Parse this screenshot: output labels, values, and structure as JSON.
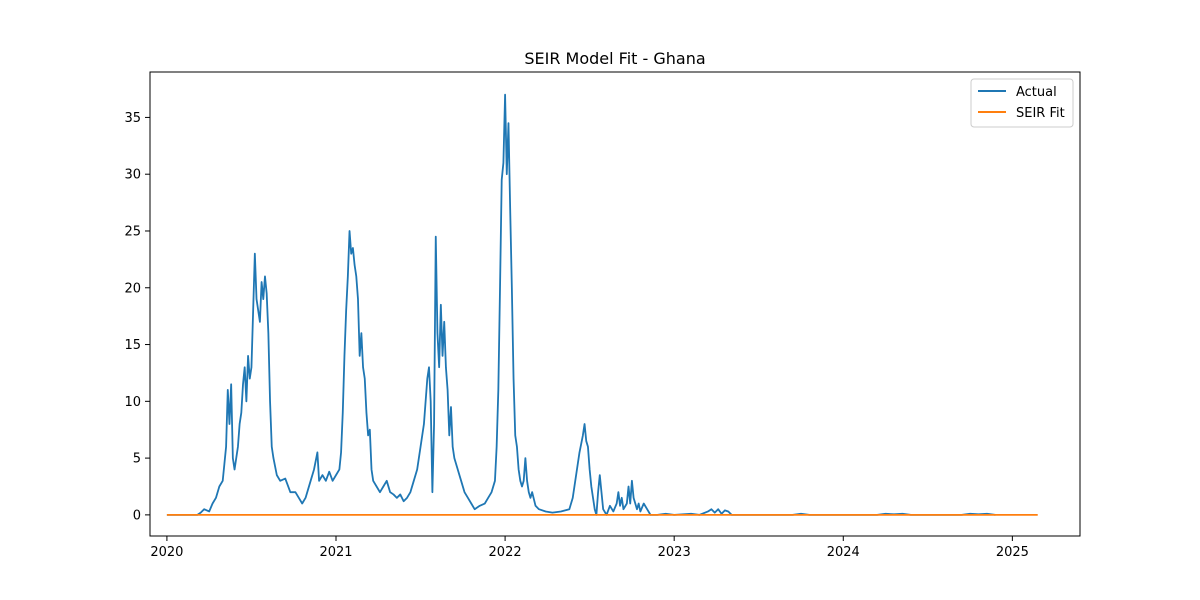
{
  "chart_data": {
    "type": "line",
    "title": "SEIR Model Fit - Ghana",
    "xlabel": "",
    "ylabel": "",
    "xlim": [
      2019.9,
      2025.4
    ],
    "ylim": [
      -1.86,
      39.0
    ],
    "x_ticks": [
      {
        "value": 2020,
        "label": "2020"
      },
      {
        "value": 2021,
        "label": "2021"
      },
      {
        "value": 2022,
        "label": "2022"
      },
      {
        "value": 2023,
        "label": "2023"
      },
      {
        "value": 2024,
        "label": "2024"
      },
      {
        "value": 2025,
        "label": "2025"
      }
    ],
    "y_ticks": [
      {
        "value": 0,
        "label": "0"
      },
      {
        "value": 5,
        "label": "5"
      },
      {
        "value": 10,
        "label": "10"
      },
      {
        "value": 15,
        "label": "15"
      },
      {
        "value": 20,
        "label": "20"
      },
      {
        "value": 25,
        "label": "25"
      },
      {
        "value": 30,
        "label": "30"
      },
      {
        "value": 35,
        "label": "35"
      }
    ],
    "grid": false,
    "legend_position": "top-right",
    "series": [
      {
        "name": "Actual",
        "color": "#1f77b4",
        "points": [
          [
            2020.0,
            0.0
          ],
          [
            2020.18,
            0.0
          ],
          [
            2020.2,
            0.2
          ],
          [
            2020.22,
            0.5
          ],
          [
            2020.25,
            0.3
          ],
          [
            2020.27,
            1.0
          ],
          [
            2020.29,
            1.5
          ],
          [
            2020.31,
            2.5
          ],
          [
            2020.33,
            3.0
          ],
          [
            2020.34,
            4.5
          ],
          [
            2020.35,
            6.0
          ],
          [
            2020.36,
            11.0
          ],
          [
            2020.37,
            8.0
          ],
          [
            2020.38,
            11.5
          ],
          [
            2020.39,
            5.0
          ],
          [
            2020.4,
            4.0
          ],
          [
            2020.41,
            5.0
          ],
          [
            2020.42,
            6.0
          ],
          [
            2020.43,
            8.0
          ],
          [
            2020.44,
            9.0
          ],
          [
            2020.45,
            11.5
          ],
          [
            2020.46,
            13.0
          ],
          [
            2020.47,
            10.0
          ],
          [
            2020.48,
            14.0
          ],
          [
            2020.49,
            12.0
          ],
          [
            2020.5,
            13.0
          ],
          [
            2020.51,
            18.0
          ],
          [
            2020.52,
            23.0
          ],
          [
            2020.53,
            19.0
          ],
          [
            2020.55,
            17.0
          ],
          [
            2020.56,
            20.5
          ],
          [
            2020.57,
            19.0
          ],
          [
            2020.58,
            21.0
          ],
          [
            2020.59,
            19.5
          ],
          [
            2020.6,
            16.0
          ],
          [
            2020.61,
            10.0
          ],
          [
            2020.62,
            6.0
          ],
          [
            2020.63,
            5.0
          ],
          [
            2020.65,
            3.5
          ],
          [
            2020.67,
            3.0
          ],
          [
            2020.7,
            3.2
          ],
          [
            2020.73,
            2.0
          ],
          [
            2020.76,
            2.0
          ],
          [
            2020.78,
            1.5
          ],
          [
            2020.8,
            1.0
          ],
          [
            2020.82,
            1.5
          ],
          [
            2020.85,
            3.0
          ],
          [
            2020.87,
            4.0
          ],
          [
            2020.89,
            5.5
          ],
          [
            2020.9,
            3.0
          ],
          [
            2020.92,
            3.5
          ],
          [
            2020.94,
            3.0
          ],
          [
            2020.96,
            3.8
          ],
          [
            2020.98,
            3.0
          ],
          [
            2021.0,
            3.5
          ],
          [
            2021.02,
            4.0
          ],
          [
            2021.03,
            5.5
          ],
          [
            2021.04,
            9.0
          ],
          [
            2021.05,
            14.0
          ],
          [
            2021.06,
            18.0
          ],
          [
            2021.07,
            21.0
          ],
          [
            2021.08,
            25.0
          ],
          [
            2021.09,
            23.0
          ],
          [
            2021.1,
            23.5
          ],
          [
            2021.11,
            22.0
          ],
          [
            2021.12,
            21.0
          ],
          [
            2021.13,
            19.0
          ],
          [
            2021.14,
            14.0
          ],
          [
            2021.15,
            16.0
          ],
          [
            2021.16,
            13.0
          ],
          [
            2021.17,
            12.0
          ],
          [
            2021.18,
            9.0
          ],
          [
            2021.19,
            7.0
          ],
          [
            2021.2,
            7.5
          ],
          [
            2021.21,
            4.0
          ],
          [
            2021.22,
            3.0
          ],
          [
            2021.24,
            2.5
          ],
          [
            2021.26,
            2.0
          ],
          [
            2021.28,
            2.5
          ],
          [
            2021.3,
            3.0
          ],
          [
            2021.32,
            2.0
          ],
          [
            2021.34,
            1.8
          ],
          [
            2021.36,
            1.5
          ],
          [
            2021.38,
            1.8
          ],
          [
            2021.4,
            1.2
          ],
          [
            2021.42,
            1.5
          ],
          [
            2021.44,
            2.0
          ],
          [
            2021.46,
            3.0
          ],
          [
            2021.48,
            4.0
          ],
          [
            2021.5,
            6.0
          ],
          [
            2021.52,
            8.0
          ],
          [
            2021.54,
            12.0
          ],
          [
            2021.55,
            13.0
          ],
          [
            2021.56,
            10.0
          ],
          [
            2021.57,
            2.0
          ],
          [
            2021.58,
            8.0
          ],
          [
            2021.59,
            24.5
          ],
          [
            2021.6,
            16.0
          ],
          [
            2021.61,
            13.0
          ],
          [
            2021.62,
            18.5
          ],
          [
            2021.63,
            14.0
          ],
          [
            2021.64,
            17.0
          ],
          [
            2021.65,
            13.0
          ],
          [
            2021.66,
            11.0
          ],
          [
            2021.67,
            7.0
          ],
          [
            2021.68,
            9.5
          ],
          [
            2021.69,
            6.0
          ],
          [
            2021.7,
            5.0
          ],
          [
            2021.72,
            4.0
          ],
          [
            2021.74,
            3.0
          ],
          [
            2021.76,
            2.0
          ],
          [
            2021.78,
            1.5
          ],
          [
            2021.8,
            1.0
          ],
          [
            2021.82,
            0.5
          ],
          [
            2021.85,
            0.8
          ],
          [
            2021.88,
            1.0
          ],
          [
            2021.9,
            1.5
          ],
          [
            2021.92,
            2.0
          ],
          [
            2021.94,
            3.0
          ],
          [
            2021.95,
            6.0
          ],
          [
            2021.96,
            11.0
          ],
          [
            2021.97,
            20.0
          ],
          [
            2021.98,
            29.5
          ],
          [
            2021.99,
            31.0
          ],
          [
            2022.0,
            37.0
          ],
          [
            2022.01,
            30.0
          ],
          [
            2022.02,
            34.5
          ],
          [
            2022.03,
            27.0
          ],
          [
            2022.04,
            20.0
          ],
          [
            2022.05,
            12.0
          ],
          [
            2022.06,
            7.0
          ],
          [
            2022.07,
            6.0
          ],
          [
            2022.08,
            4.0
          ],
          [
            2022.09,
            3.0
          ],
          [
            2022.1,
            2.5
          ],
          [
            2022.11,
            3.0
          ],
          [
            2022.12,
            5.0
          ],
          [
            2022.13,
            3.0
          ],
          [
            2022.14,
            2.0
          ],
          [
            2022.15,
            1.5
          ],
          [
            2022.16,
            2.0
          ],
          [
            2022.18,
            0.8
          ],
          [
            2022.2,
            0.5
          ],
          [
            2022.24,
            0.3
          ],
          [
            2022.28,
            0.2
          ],
          [
            2022.33,
            0.3
          ],
          [
            2022.38,
            0.5
          ],
          [
            2022.4,
            1.5
          ],
          [
            2022.42,
            3.5
          ],
          [
            2022.44,
            5.5
          ],
          [
            2022.46,
            7.0
          ],
          [
            2022.47,
            8.0
          ],
          [
            2022.48,
            6.5
          ],
          [
            2022.49,
            6.0
          ],
          [
            2022.5,
            4.0
          ],
          [
            2022.51,
            2.5
          ],
          [
            2022.52,
            1.5
          ],
          [
            2022.53,
            0.5
          ],
          [
            2022.54,
            0.0
          ],
          [
            2022.55,
            2.0
          ],
          [
            2022.56,
            3.5
          ],
          [
            2022.57,
            2.0
          ],
          [
            2022.58,
            0.5
          ],
          [
            2022.6,
            0.0
          ],
          [
            2022.62,
            0.8
          ],
          [
            2022.64,
            0.3
          ],
          [
            2022.66,
            1.0
          ],
          [
            2022.67,
            2.0
          ],
          [
            2022.68,
            0.8
          ],
          [
            2022.69,
            1.5
          ],
          [
            2022.7,
            0.5
          ],
          [
            2022.72,
            1.0
          ],
          [
            2022.73,
            2.5
          ],
          [
            2022.74,
            1.0
          ],
          [
            2022.75,
            3.0
          ],
          [
            2022.76,
            1.5
          ],
          [
            2022.77,
            1.0
          ],
          [
            2022.78,
            0.5
          ],
          [
            2022.79,
            1.0
          ],
          [
            2022.8,
            0.3
          ],
          [
            2022.82,
            1.0
          ],
          [
            2022.84,
            0.5
          ],
          [
            2022.86,
            0.0
          ],
          [
            2022.9,
            0.0
          ],
          [
            2022.95,
            0.1
          ],
          [
            2023.0,
            0.0
          ],
          [
            2023.1,
            0.1
          ],
          [
            2023.15,
            0.0
          ],
          [
            2023.2,
            0.3
          ],
          [
            2023.22,
            0.5
          ],
          [
            2023.24,
            0.2
          ],
          [
            2023.26,
            0.5
          ],
          [
            2023.28,
            0.1
          ],
          [
            2023.3,
            0.4
          ],
          [
            2023.32,
            0.3
          ],
          [
            2023.34,
            0.0
          ],
          [
            2023.7,
            0.0
          ],
          [
            2023.75,
            0.1
          ],
          [
            2023.8,
            0.0
          ],
          [
            2024.2,
            0.0
          ],
          [
            2024.25,
            0.1
          ],
          [
            2024.3,
            0.05
          ],
          [
            2024.35,
            0.1
          ],
          [
            2024.4,
            0.0
          ],
          [
            2024.7,
            0.0
          ],
          [
            2024.75,
            0.1
          ],
          [
            2024.8,
            0.05
          ],
          [
            2024.85,
            0.1
          ],
          [
            2024.9,
            0.0
          ]
        ]
      },
      {
        "name": "SEIR Fit",
        "color": "#ff7f0e",
        "points": [
          [
            2020.0,
            0.0
          ],
          [
            2025.15,
            0.0
          ]
        ]
      }
    ]
  }
}
